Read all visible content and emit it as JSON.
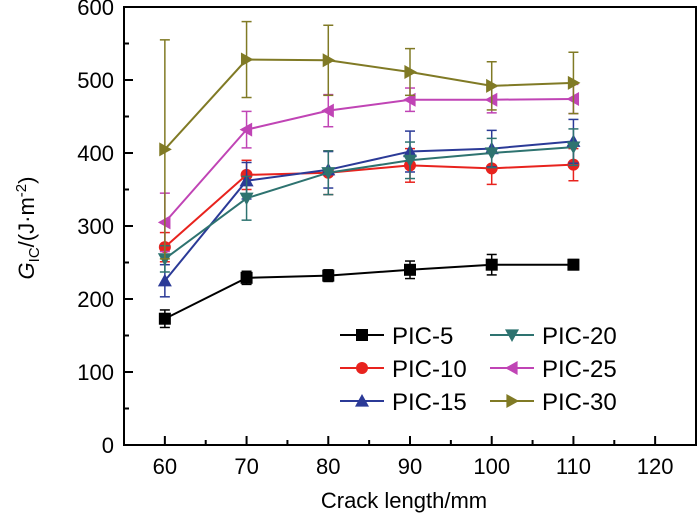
{
  "chart_data": {
    "type": "line",
    "title": "",
    "xlabel": "Crack length/mm",
    "ylabel": {
      "symbol": "G",
      "subscript": "IC",
      "unit_prefix": "/(J·m",
      "unit_exponent": "-2",
      "unit_suffix": ")"
    },
    "xlim": [
      55,
      125
    ],
    "ylim": [
      0,
      600
    ],
    "xticks": [
      60,
      70,
      80,
      90,
      100,
      110,
      120
    ],
    "yticks": [
      0,
      100,
      200,
      300,
      400,
      500,
      600
    ],
    "xtick_labels": [
      "60",
      "70",
      "80",
      "90",
      "100",
      "110",
      "120"
    ],
    "ytick_labels": [
      "0",
      "100",
      "200",
      "300",
      "400",
      "500",
      "600"
    ],
    "x": [
      60,
      70,
      80,
      90,
      100,
      110
    ],
    "grid": false,
    "legend_position": "bottom-right",
    "series": [
      {
        "name": "PIC-5",
        "color": "#000000",
        "marker": "square",
        "values": [
          173,
          229,
          232,
          240,
          247,
          247
        ],
        "errors": [
          12,
          9,
          8,
          12,
          14,
          7
        ]
      },
      {
        "name": "PIC-10",
        "color": "#e8231e",
        "marker": "circle",
        "values": [
          271,
          370,
          373,
          383,
          379,
          384
        ],
        "errors": [
          20,
          20,
          30,
          23,
          22,
          22
        ]
      },
      {
        "name": "PIC-15",
        "color": "#2b3a97",
        "marker": "triangle-up",
        "values": [
          225,
          362,
          377,
          402,
          406,
          416
        ],
        "errors": [
          22,
          25,
          25,
          28,
          25,
          30
        ]
      },
      {
        "name": "PIC-20",
        "color": "#2e7370",
        "marker": "triangle-down",
        "values": [
          255,
          338,
          373,
          390,
          400,
          408
        ],
        "errors": [
          18,
          30,
          30,
          25,
          20,
          25
        ]
      },
      {
        "name": "PIC-25",
        "color": "#c044b5",
        "marker": "triangle-left",
        "values": [
          305,
          432,
          458,
          473,
          473,
          474
        ],
        "errors": [
          40,
          25,
          22,
          16,
          18,
          20
        ]
      },
      {
        "name": "PIC-30",
        "color": "#807a25",
        "marker": "triangle-right",
        "values": [
          405,
          528,
          527,
          511,
          492,
          496
        ],
        "errors": [
          150,
          52,
          48,
          32,
          33,
          42
        ]
      }
    ]
  }
}
